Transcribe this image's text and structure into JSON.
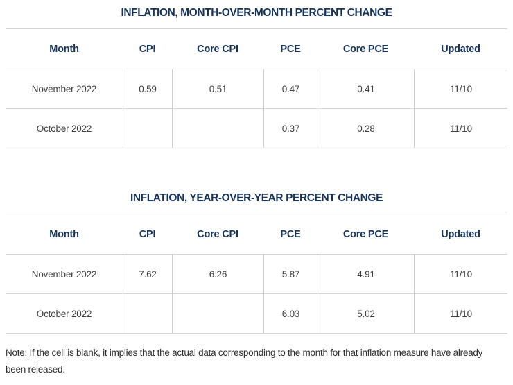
{
  "theme": {
    "accent_navy": "#16345a",
    "data_text_color": "#3d3d3d",
    "note_text_color": "#2e2e2e",
    "grid_line_color": "#d3d3d3",
    "background": "#ffffff"
  },
  "tables": [
    {
      "title": "INFLATION, MONTH-OVER-MONTH PERCENT CHANGE",
      "columns": [
        "Month",
        "CPI",
        "Core CPI",
        "PCE",
        "Core PCE",
        "Updated"
      ],
      "rows": [
        {
          "cells": [
            "November 2022",
            "0.59",
            "0.51",
            "0.47",
            "0.41",
            "11/10"
          ]
        },
        {
          "cells": [
            "October 2022",
            "",
            "",
            "0.37",
            "0.28",
            "11/10"
          ]
        }
      ]
    },
    {
      "title": "INFLATION, YEAR-OVER-YEAR PERCENT CHANGE",
      "columns": [
        "Month",
        "CPI",
        "Core CPI",
        "PCE",
        "Core PCE",
        "Updated"
      ],
      "rows": [
        {
          "cells": [
            "November 2022",
            "7.62",
            "6.26",
            "5.87",
            "4.91",
            "11/10"
          ]
        },
        {
          "cells": [
            "October 2022",
            "",
            "",
            "6.03",
            "5.02",
            "11/10"
          ]
        }
      ]
    }
  ],
  "note": "Note: If the cell is blank, it implies that the actual data corresponding to the month for that inflation measure have already been released.",
  "chart_data": [
    {
      "type": "table",
      "title": "INFLATION, MONTH-OVER-MONTH PERCENT CHANGE",
      "columns": [
        "Month",
        "CPI",
        "Core CPI",
        "PCE",
        "Core PCE",
        "Updated"
      ],
      "rows": [
        [
          "November 2022",
          0.59,
          0.51,
          0.47,
          0.41,
          "11/10"
        ],
        [
          "October 2022",
          null,
          null,
          0.37,
          0.28,
          "11/10"
        ]
      ]
    },
    {
      "type": "table",
      "title": "INFLATION, YEAR-OVER-YEAR PERCENT CHANGE",
      "columns": [
        "Month",
        "CPI",
        "Core CPI",
        "PCE",
        "Core PCE",
        "Updated"
      ],
      "rows": [
        [
          "November 2022",
          7.62,
          6.26,
          5.87,
          4.91,
          "11/10"
        ],
        [
          "October 2022",
          null,
          null,
          6.03,
          5.02,
          "11/10"
        ]
      ]
    }
  ]
}
